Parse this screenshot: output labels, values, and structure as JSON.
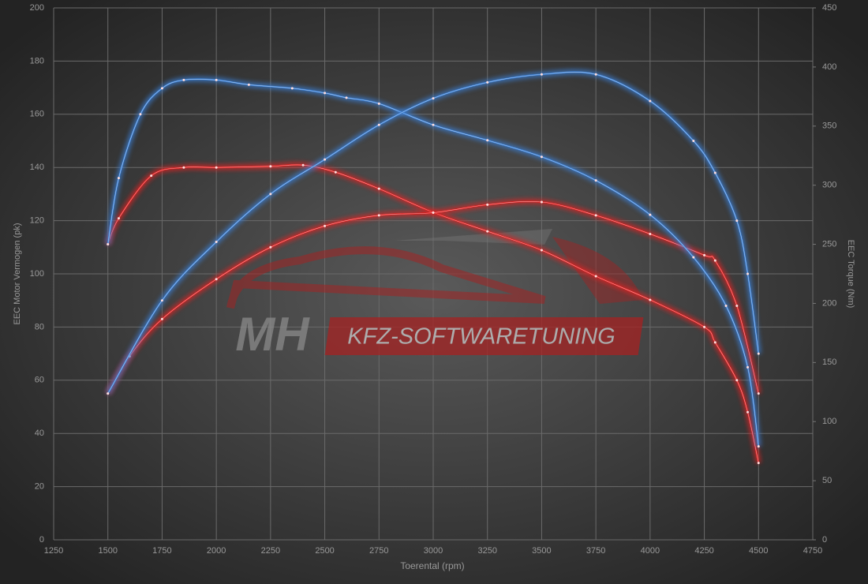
{
  "chart_data": {
    "type": "line",
    "xlabel": "Toerental (rpm)",
    "ylabel": "EEC Motor Vermogen (pk)",
    "y2label": "EEC Torque (Nm)",
    "watermark": {
      "brand": "MH",
      "text": "KFZ-SOFTWARETUNING"
    },
    "xlim": [
      1250,
      4750
    ],
    "xticks": [
      1250,
      1500,
      1750,
      2000,
      2250,
      2500,
      2750,
      3000,
      3250,
      3500,
      3750,
      4000,
      4250,
      4500,
      4750
    ],
    "ylim": [
      0,
      200
    ],
    "yticks": [
      0,
      20,
      40,
      60,
      80,
      100,
      120,
      140,
      160,
      180,
      200
    ],
    "y2lim": [
      0,
      450
    ],
    "y2ticks": [
      0,
      50,
      100,
      150,
      200,
      250,
      300,
      350,
      400,
      450
    ],
    "grid": true,
    "series": [
      {
        "color": "#e02020",
        "axis": "y2",
        "x": [
          1500,
          1550,
          1700,
          1850,
          2000,
          2250,
          2400,
          2550,
          2750,
          3000,
          3250,
          3500,
          3750,
          4000,
          4250,
          4300,
          4400,
          4450,
          4500
        ],
        "values": [
          250,
          272,
          308,
          315,
          315,
          316,
          317,
          311,
          297,
          277,
          261,
          245,
          223,
          203,
          180,
          167,
          135,
          108,
          65
        ]
      },
      {
        "color": "#e02020",
        "x": [
          1500,
          1600,
          1750,
          2000,
          2250,
          2500,
          2750,
          3000,
          3250,
          3500,
          3750,
          4000,
          4250,
          4300,
          4400,
          4500
        ],
        "values": [
          55,
          69,
          83,
          98,
          110,
          118,
          122,
          123,
          126,
          127,
          122,
          115,
          107,
          105,
          88,
          55
        ]
      },
      {
        "color": "#3a7fd5",
        "axis": "y2",
        "x": [
          1500,
          1550,
          1650,
          1750,
          1850,
          2000,
          2150,
          2350,
          2500,
          2600,
          2750,
          3000,
          3250,
          3500,
          3750,
          4000,
          4200,
          4350,
          4450,
          4500
        ],
        "values": [
          250,
          306,
          360,
          382,
          389,
          389,
          385,
          382,
          378,
          374,
          369,
          351,
          338,
          324,
          304,
          275,
          239,
          198,
          146,
          79
        ]
      },
      {
        "color": "#3a7fd5",
        "x": [
          1500,
          1750,
          2000,
          2250,
          2500,
          2750,
          3000,
          3250,
          3500,
          3750,
          4000,
          4200,
          4300,
          4400,
          4450,
          4500
        ],
        "values": [
          55,
          90,
          112,
          130,
          143,
          156,
          166,
          172,
          175,
          175,
          165,
          150,
          138,
          120,
          100,
          70
        ]
      }
    ]
  }
}
